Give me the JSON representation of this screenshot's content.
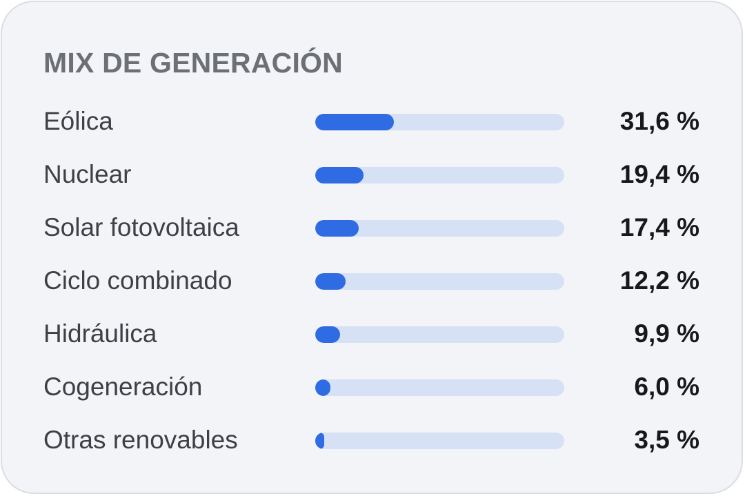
{
  "panel": {
    "title": "MIX DE GENERACIÓN",
    "accent_color": "#2f6be3",
    "track_color": "#d6e1f5"
  },
  "rows": [
    {
      "label": "Eólica",
      "value_text": "31,6 %",
      "value": 31.6
    },
    {
      "label": "Nuclear",
      "value_text": "19,4 %",
      "value": 19.4
    },
    {
      "label": "Solar fotovoltaica",
      "value_text": "17,4 %",
      "value": 17.4
    },
    {
      "label": "Ciclo combinado",
      "value_text": "12,2 %",
      "value": 12.2
    },
    {
      "label": "Hidráulica",
      "value_text": "9,9 %",
      "value": 9.9
    },
    {
      "label": "Cogeneración",
      "value_text": "6,0 %",
      "value": 6.0
    },
    {
      "label": "Otras renovables",
      "value_text": "3,5 %",
      "value": 3.5
    }
  ]
}
